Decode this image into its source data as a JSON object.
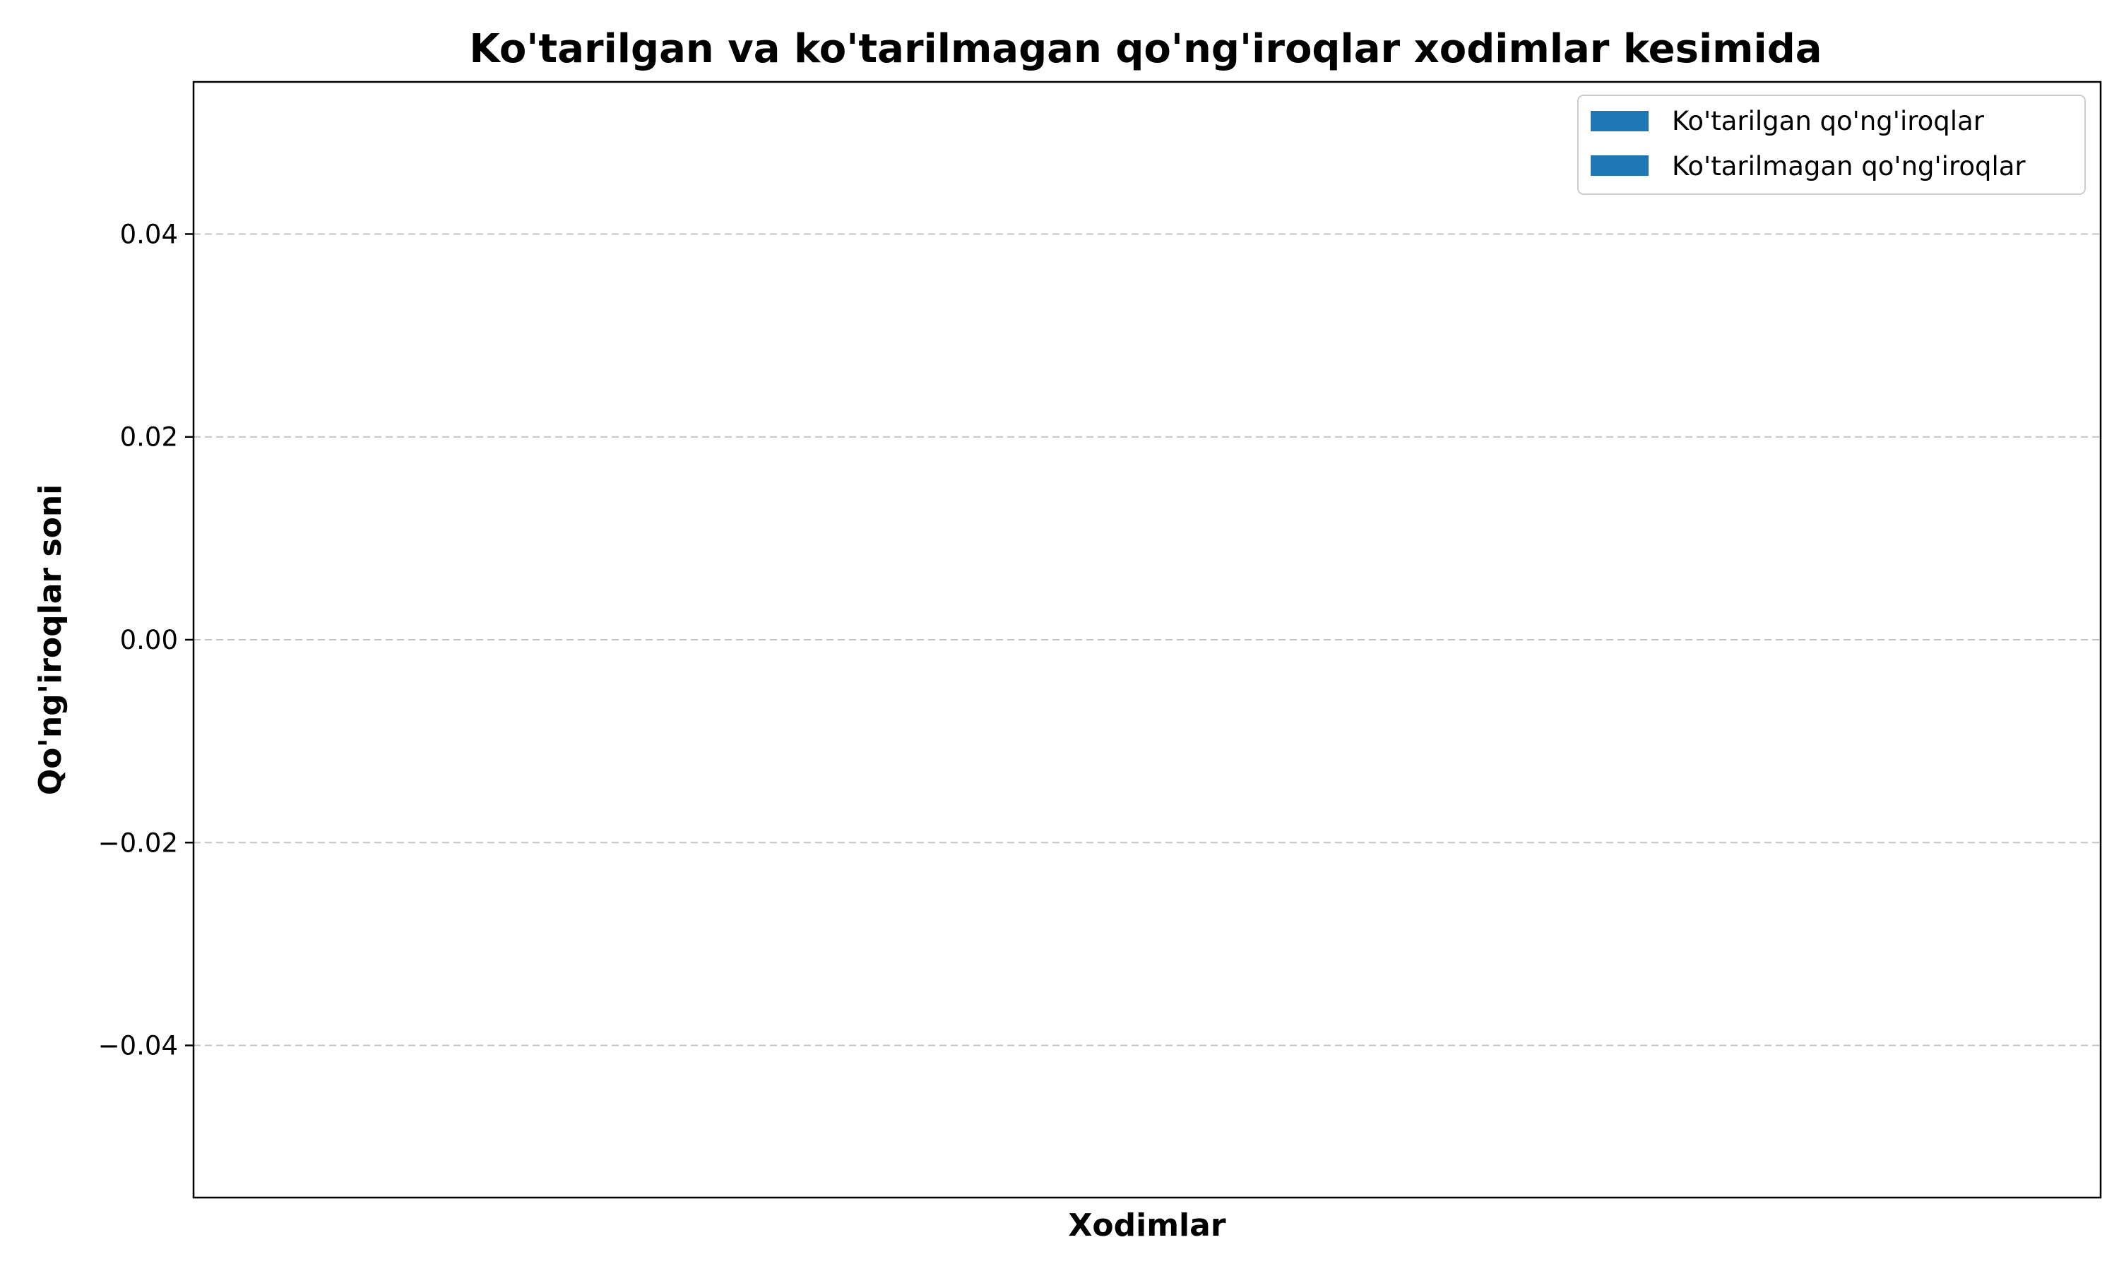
{
  "chart_data": {
    "type": "bar",
    "title": "Ko'tarilgan va ko'tarilmagan qo'ng'iroqlar xodimlar kesimida",
    "xlabel": "Xodimlar",
    "ylabel": "Qo'ng'iroqlar soni",
    "categories": [],
    "series": [
      {
        "name": "Ko'tarilgan qo'ng'iroqlar",
        "values": [],
        "color": "#1f77b4"
      },
      {
        "name": "Ko'tarilmagan qo'ng'iroqlar",
        "values": [],
        "color": "#1f77b4"
      }
    ],
    "ylim": [
      -0.055,
      0.055
    ],
    "yticks": [
      -0.04,
      -0.02,
      0.0,
      0.02,
      0.04
    ],
    "ytick_labels": [
      "−0.04",
      "−0.02",
      "0.00",
      "0.02",
      "0.04"
    ],
    "grid": "y, dashed",
    "legend": "top-right"
  }
}
